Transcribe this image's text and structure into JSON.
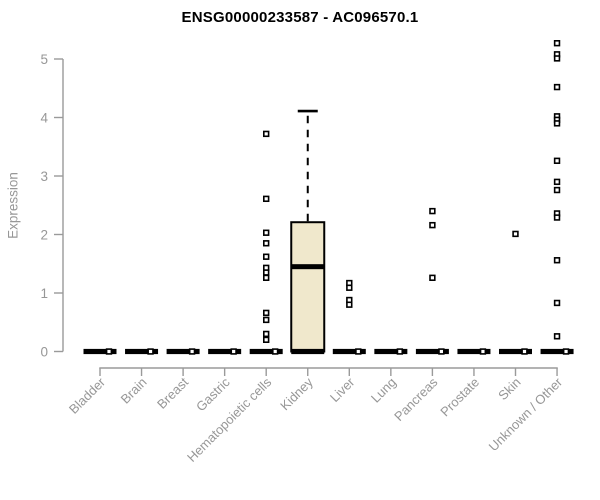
{
  "chart_data": {
    "type": "boxplot",
    "title": "ENSG00000233587 - AC096570.1",
    "ylabel": "Expression",
    "xlabel": "",
    "ylim": [
      0,
      5.35
    ],
    "yticks": [
      0,
      1,
      2,
      3,
      4,
      5
    ],
    "grid": false,
    "legend": "none",
    "categories": [
      "Bladder",
      "Brain",
      "Breast",
      "Gastric",
      "Hematopoietic cells",
      "Kidney",
      "Liver",
      "Lung",
      "Pancreas",
      "Prostate",
      "Skin",
      "Unknown / Other"
    ],
    "boxplots": [
      {
        "category": "Bladder",
        "q1": 0,
        "median": 0,
        "q3": 0,
        "whisker_low": 0,
        "whisker_high": 0,
        "outliers": [
          0
        ]
      },
      {
        "category": "Brain",
        "q1": 0,
        "median": 0,
        "q3": 0,
        "whisker_low": 0,
        "whisker_high": 0,
        "outliers": [
          0
        ]
      },
      {
        "category": "Breast",
        "q1": 0,
        "median": 0,
        "q3": 0,
        "whisker_low": 0,
        "whisker_high": 0,
        "outliers": [
          0
        ]
      },
      {
        "category": "Gastric",
        "q1": 0,
        "median": 0,
        "q3": 0,
        "whisker_low": 0,
        "whisker_high": 0,
        "outliers": [
          0
        ]
      },
      {
        "category": "Hematopoietic cells",
        "q1": 0,
        "median": 0,
        "q3": 0,
        "whisker_low": 0,
        "whisker_high": 0,
        "outliers": [
          0,
          3.72,
          2.61,
          2.03,
          1.85,
          1.62,
          1.43,
          1.35,
          1.26,
          0.66,
          0.54,
          0.3,
          0.2
        ]
      },
      {
        "category": "Kidney",
        "q1": 0,
        "median": 1.45,
        "q3": 2.21,
        "whisker_low": 0,
        "whisker_high": 4.11,
        "outliers": []
      },
      {
        "category": "Liver",
        "q1": 0,
        "median": 0,
        "q3": 0,
        "whisker_low": 0,
        "whisker_high": 0,
        "outliers": [
          0,
          1.17,
          1.09,
          0.88,
          0.8
        ]
      },
      {
        "category": "Lung",
        "q1": 0,
        "median": 0,
        "q3": 0,
        "whisker_low": 0,
        "whisker_high": 0,
        "outliers": [
          0
        ]
      },
      {
        "category": "Pancreas",
        "q1": 0,
        "median": 0,
        "q3": 0,
        "whisker_low": 0,
        "whisker_high": 0,
        "outliers": [
          0,
          2.4,
          2.16,
          1.26
        ]
      },
      {
        "category": "Prostate",
        "q1": 0,
        "median": 0,
        "q3": 0,
        "whisker_low": 0,
        "whisker_high": 0,
        "outliers": [
          0
        ]
      },
      {
        "category": "Skin",
        "q1": 0,
        "median": 0,
        "q3": 0,
        "whisker_low": 0,
        "whisker_high": 0,
        "outliers": [
          0,
          2.01
        ]
      },
      {
        "category": "Unknown / Other",
        "q1": 0,
        "median": 0,
        "q3": 0,
        "whisker_low": 0,
        "whisker_high": 0,
        "outliers": [
          0,
          5.27,
          5.08,
          5.01,
          4.52,
          4.02,
          3.96,
          3.9,
          3.26,
          2.9,
          2.76,
          2.36,
          2.29,
          1.56,
          0.83,
          0.26
        ]
      }
    ],
    "colors": {
      "box_fill": "#f0e8cc",
      "box_stroke": "#000000",
      "median": "#000000",
      "marker_stroke": "#000000",
      "marker_fill": "#ffffff",
      "axis": "#9a9a9a",
      "tick_text": "#979797",
      "title_text": "#000000"
    }
  }
}
